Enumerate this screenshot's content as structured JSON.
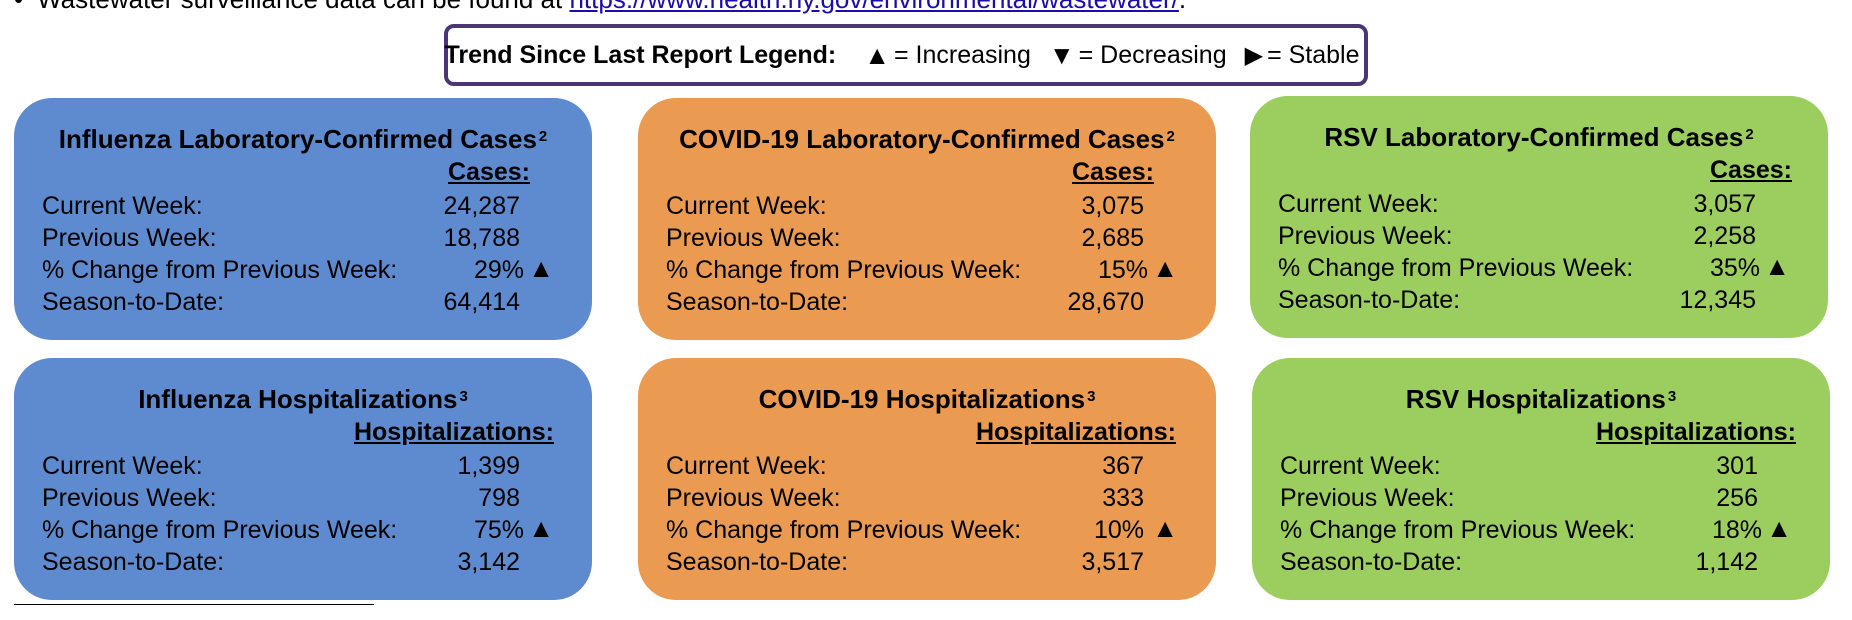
{
  "top_text": {
    "bullet": "•",
    "prefix": "Wastewater surveillance data can be found at",
    "link": "https://www.health.ny.gov/environmental/wastewater/",
    "suffix": "."
  },
  "legend": {
    "title": "Trend Since Last Report Legend:",
    "increasing_symbol": "▲",
    "increasing_label": "= Increasing",
    "decreasing_symbol": "▼",
    "decreasing_label": "= Decreasing",
    "stable_symbol": "▶",
    "stable_label": "= Stable"
  },
  "row_labels": {
    "current": "Current Week:",
    "previous": "Previous Week:",
    "change": "% Change from Previous Week:",
    "season": "Season-to-Date:"
  },
  "trend_symbol": "▲",
  "cards": {
    "flu_cases": {
      "title": "Influenza Laboratory-Confirmed Cases",
      "sup": "2",
      "column_header": "Cases:",
      "current": "24,287",
      "previous": "18,788",
      "change": "29%",
      "season": "64,414"
    },
    "covid_cases": {
      "title": "COVID-19 Laboratory-Confirmed Cases",
      "sup": "2",
      "column_header": "Cases:",
      "current": "3,075",
      "previous": "2,685",
      "change": "15%",
      "season": "28,670"
    },
    "rsv_cases": {
      "title": "RSV Laboratory-Confirmed Cases",
      "sup": "2",
      "column_header": "Cases:",
      "current": "3,057",
      "previous": "2,258",
      "change": "35%",
      "season": "12,345"
    },
    "flu_hosp": {
      "title": "Influenza Hospitalizations",
      "sup": "3",
      "column_header": "Hospitalizations:",
      "current": "1,399",
      "previous": "798",
      "change": "75%",
      "season": "3,142"
    },
    "covid_hosp": {
      "title": "COVID-19 Hospitalizations",
      "sup": "3",
      "column_header": "Hospitalizations:",
      "current": "367",
      "previous": "333",
      "change": "10%",
      "season": "3,517"
    },
    "rsv_hosp": {
      "title": "RSV Hospitalizations",
      "sup": "3",
      "column_header": "Hospitalizations:",
      "current": "301",
      "previous": "256",
      "change": "18%",
      "season": "1,142"
    }
  },
  "colors": {
    "influenza": "#5e8bcf",
    "covid": "#ea9a51",
    "rsv": "#9ccd5f",
    "legend_border": "#4b3575"
  }
}
